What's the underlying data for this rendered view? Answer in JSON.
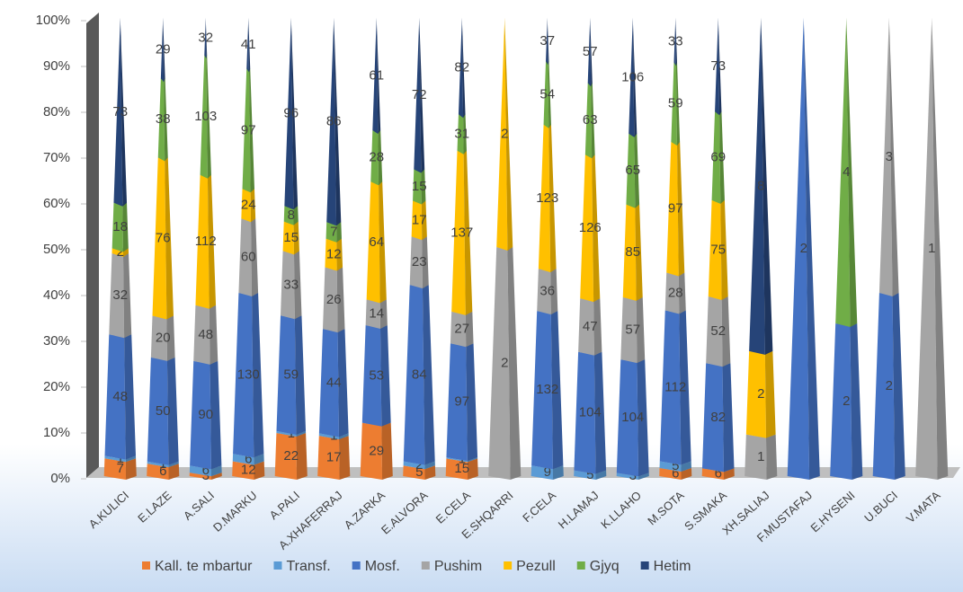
{
  "chart_data": {
    "type": "stacked-pyramid-100",
    "categories": [
      "A.KULICI",
      "E.LAZE",
      "A.SALI",
      "D.MARKU",
      "A.PALI",
      "A.XHAFERRAJ",
      "A.ZARKA",
      "E.ALVORA",
      "E.CELA",
      "E.SHQARRI",
      "F.CELA",
      "H.LAMAJ",
      "K.LLAHO",
      "M.SOTA",
      "S.SMAKA",
      "XH.SALIAJ",
      "F.MUSTAFAJ",
      "E.HYSENI",
      "U.BUCI",
      "V.MATA"
    ],
    "series": [
      {
        "name": "Kall. te mbartur",
        "color": "#ed7d31",
        "values": [
          7,
          6,
          3,
          12,
          22,
          17,
          29,
          5,
          15,
          null,
          null,
          null,
          null,
          6,
          6,
          null,
          null,
          null,
          null,
          null
        ]
      },
      {
        "name": "Transf.",
        "color": "#5b9bd5",
        "values": [
          1,
          1,
          6,
          6,
          1,
          1,
          null,
          2,
          1,
          null,
          9,
          5,
          3,
          5,
          null,
          null,
          null,
          null,
          null,
          null
        ]
      },
      {
        "name": "Mosf.",
        "color": "#4472c4",
        "values": [
          48,
          50,
          90,
          130,
          59,
          44,
          53,
          84,
          97,
          null,
          132,
          104,
          104,
          112,
          82,
          null,
          2,
          2,
          2,
          null
        ]
      },
      {
        "name": "Pushim",
        "color": "#a5a5a5",
        "values": [
          32,
          20,
          48,
          60,
          33,
          26,
          14,
          23,
          27,
          2,
          36,
          47,
          57,
          28,
          52,
          1,
          null,
          null,
          3,
          1
        ]
      },
      {
        "name": "Pezull",
        "color": "#ffc000",
        "values": [
          2,
          76,
          112,
          24,
          15,
          12,
          64,
          17,
          137,
          2,
          123,
          126,
          85,
          97,
          75,
          2,
          null,
          null,
          null,
          null
        ]
      },
      {
        "name": "Gjyq",
        "color": "#70ad47",
        "values": [
          18,
          38,
          103,
          97,
          8,
          7,
          28,
          15,
          31,
          null,
          54,
          63,
          65,
          59,
          69,
          null,
          null,
          4,
          null,
          null
        ]
      },
      {
        "name": "Hetim",
        "color": "#264478",
        "values": [
          73,
          29,
          32,
          41,
          96,
          86,
          61,
          72,
          82,
          null,
          37,
          57,
          106,
          33,
          73,
          8,
          null,
          null,
          null,
          null
        ]
      }
    ],
    "ylim": [
      0,
      100
    ],
    "yticks": [
      {
        "value": 0,
        "label": "0%"
      },
      {
        "value": 10,
        "label": "10%"
      },
      {
        "value": 20,
        "label": "20%"
      },
      {
        "value": 30,
        "label": "30%"
      },
      {
        "value": 40,
        "label": "40%"
      },
      {
        "value": 50,
        "label": "50%"
      },
      {
        "value": 60,
        "label": "60%"
      },
      {
        "value": 70,
        "label": "70%"
      },
      {
        "value": 80,
        "label": "80%"
      },
      {
        "value": 90,
        "label": "90%"
      },
      {
        "value": 100,
        "label": "100%"
      }
    ],
    "legend": "bottom"
  }
}
